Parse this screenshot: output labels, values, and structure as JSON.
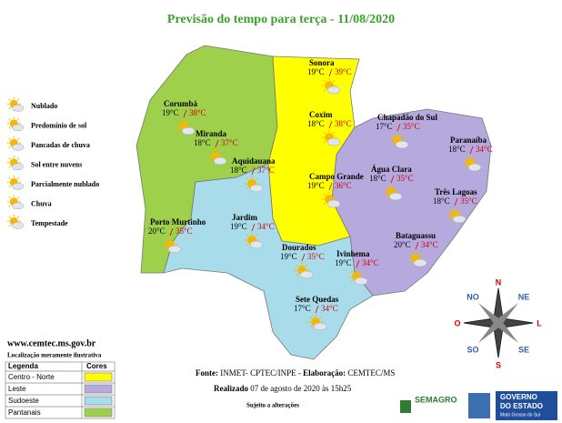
{
  "title": "Previsão do tempo para terça - 11/08/2020",
  "icon_legend": [
    "Nublado",
    "Predomínio de sol",
    "Pancadas de chuva",
    "Sol entre nuvens",
    "Parcialmente nublado",
    "Chuva",
    "Tempestade"
  ],
  "cities": [
    {
      "name": "Corumbá",
      "min": "19°C",
      "max": "38°C"
    },
    {
      "name": "Miranda",
      "min": "18°C",
      "max": "37°C"
    },
    {
      "name": "Aquidauana",
      "min": "18°C",
      "max": "37°C"
    },
    {
      "name": "Porto Murtinho",
      "min": "20°C",
      "max": "35°C"
    },
    {
      "name": "Sonora",
      "min": "19°C",
      "max": "39°C"
    },
    {
      "name": "Coxim",
      "min": "18°C",
      "max": "38°C"
    },
    {
      "name": "Campo Grande",
      "min": "19°C",
      "max": "36°C"
    },
    {
      "name": "Chapadão do Sul",
      "min": "17°C",
      "max": "35°C"
    },
    {
      "name": "Paranaíba",
      "min": "18°C",
      "max": "34°C"
    },
    {
      "name": "Água Clara",
      "min": "18°C",
      "max": "35°C"
    },
    {
      "name": "Três Lagoas",
      "min": "18°C",
      "max": "35°C"
    },
    {
      "name": "Bataguassu",
      "min": "20°C",
      "max": "34°C"
    },
    {
      "name": "Jardim",
      "min": "19°C",
      "max": "34°C"
    },
    {
      "name": "Dourados",
      "min": "19°C",
      "max": "35°C"
    },
    {
      "name": "Ivinhema",
      "min": "19°C",
      "max": "34°C"
    },
    {
      "name": "Sete Quedas",
      "min": "17°C",
      "max": "34°C"
    }
  ],
  "website": "www.cemtec.ms.gov.br",
  "note": "Localização meramente ilustrativa",
  "region_table": {
    "header": [
      "Legenda",
      "Cores"
    ],
    "rows": [
      "Centro - Norte",
      "Leste",
      "Sudoeste",
      "Pantanais"
    ]
  },
  "compass": {
    "n": "N",
    "ne": "NE",
    "l": "L",
    "se": "SE",
    "s": "S",
    "so": "SO",
    "o": "O",
    "no": "NO"
  },
  "footer": {
    "source_label": "Fonte:",
    "source": "INMET- CPTEC/INPE - ",
    "made_label": "Elaboração:",
    "made": "CEMTEC/MS",
    "done_label": "Realizado",
    "done": "07 de agosto de 2020 às 15h25",
    "subject": "Sujeito a alterações"
  },
  "logos": {
    "semagro": "SEMAGRO",
    "gov1": "GOVERNO",
    "gov2": "DO ESTADO",
    "gov3": "Mato Grosso do Sul"
  }
}
